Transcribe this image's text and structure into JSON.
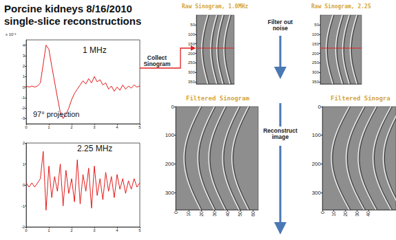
{
  "header": {
    "title": [
      "Porcine kidneys 8/16/2010",
      "single-slice reconstructions"
    ]
  },
  "chart_data": [
    {
      "type": "line",
      "y_label": "x 10⁻³",
      "annotations": [
        "1 MHz",
        "97° projection"
      ],
      "color": "#e00000",
      "x": [
        0,
        0.125,
        0.25,
        0.375,
        0.5,
        0.625,
        0.75,
        0.875,
        1.0,
        1.125,
        1.25,
        1.375,
        1.5,
        1.625,
        1.75,
        1.875,
        2.0,
        2.125,
        2.25,
        2.375,
        2.5,
        2.625,
        2.75,
        2.875,
        3.0,
        3.125,
        3.25,
        3.375,
        3.5,
        3.625,
        3.75,
        3.875,
        4.0,
        4.125,
        4.25,
        4.375,
        4.5,
        4.625,
        4.75,
        4.875,
        5.0
      ],
      "values": [
        0.1,
        0,
        0.1,
        0,
        0.1,
        0.4,
        2.2,
        4.0,
        3.6,
        2.0,
        0.5,
        -1.0,
        -2.4,
        -3.0,
        -2.6,
        -2.0,
        -1.2,
        -0.6,
        -0.2,
        0.2,
        0.6,
        0.3,
        0.8,
        0.4,
        1.0,
        0.5,
        0.7,
        0.2,
        0.4,
        -0.2,
        0.1,
        -0.4,
        0,
        -0.3,
        0.2,
        -0.2,
        0.1,
        -0.1,
        0.2,
        0,
        0.1
      ],
      "xlim": [
        0,
        5
      ],
      "xticks": [
        0,
        1,
        2,
        3,
        4,
        5
      ],
      "ylim": [
        -3.5,
        4.5
      ],
      "yticks": [
        -3,
        -2,
        -1,
        0,
        1,
        2,
        3,
        4
      ]
    },
    {
      "type": "line",
      "annotations": [
        "2.25 MHz"
      ],
      "color": "#e00000",
      "x": [
        0,
        0.125,
        0.25,
        0.375,
        0.5,
        0.625,
        0.75,
        0.875,
        1.0,
        1.125,
        1.25,
        1.375,
        1.5,
        1.625,
        1.75,
        1.875,
        2.0,
        2.125,
        2.25,
        2.375,
        2.5,
        2.625,
        2.75,
        2.875,
        3.0,
        3.125,
        3.25,
        3.375,
        3.5,
        3.625,
        3.75,
        3.875,
        4.0,
        4.125,
        4.25,
        4.375,
        4.5,
        4.625,
        4.75,
        4.875,
        5.0
      ],
      "values": [
        0.1,
        -0.1,
        0.1,
        -0.1,
        0.1,
        0.3,
        1.6,
        -1.2,
        0.9,
        -0.6,
        0.4,
        -0.3,
        1.0,
        -1.0,
        0.7,
        -0.4,
        0.3,
        -0.8,
        1.2,
        -0.9,
        0.5,
        -0.3,
        0.8,
        -1.1,
        0.9,
        -0.5,
        0.3,
        -0.7,
        0.6,
        -0.3,
        0.4,
        -0.6,
        0.5,
        -0.2,
        0.3,
        -0.4,
        0.2,
        -0.2,
        0.3,
        -0.1,
        0.1
      ],
      "xlim": [
        0,
        5
      ],
      "xticks": [
        0,
        1,
        2,
        3,
        4,
        5
      ],
      "ylim": [
        -2,
        2
      ],
      "yticks": [
        -2,
        -1,
        0,
        1,
        2
      ]
    }
  ],
  "sinograms": [
    {
      "title": "Raw Sinogram, 1.0MHz",
      "xlim": [
        0,
        64
      ],
      "ylim": [
        0,
        360
      ],
      "yticks": [
        50,
        100,
        150,
        200,
        250,
        300,
        350
      ],
      "tick_labels": "y"
    },
    {
      "title": "Raw Sinogram, 2.25",
      "xlim": [
        0,
        64
      ],
      "ylim": [
        0,
        360
      ],
      "yticks": [
        50,
        100,
        150,
        200,
        250,
        300,
        350
      ],
      "tick_labels": "y"
    },
    {
      "title": "Filtered Sinogram",
      "xlim": [
        0,
        64
      ],
      "xticks": [
        0,
        10,
        20,
        30,
        40,
        50,
        60
      ],
      "ylim": [
        0,
        360
      ],
      "yticks": [
        0,
        100,
        200,
        300
      ]
    },
    {
      "title": "Filtered Sinogra",
      "xlim": [
        0,
        64
      ],
      "xticks": [
        0,
        10,
        20,
        30,
        40
      ],
      "ylim": [
        0,
        360
      ],
      "yticks": [
        0,
        100,
        200,
        300
      ]
    }
  ],
  "steps": [
    "Collect Sinogram",
    "Filter out noise",
    "Reconstruct image"
  ]
}
